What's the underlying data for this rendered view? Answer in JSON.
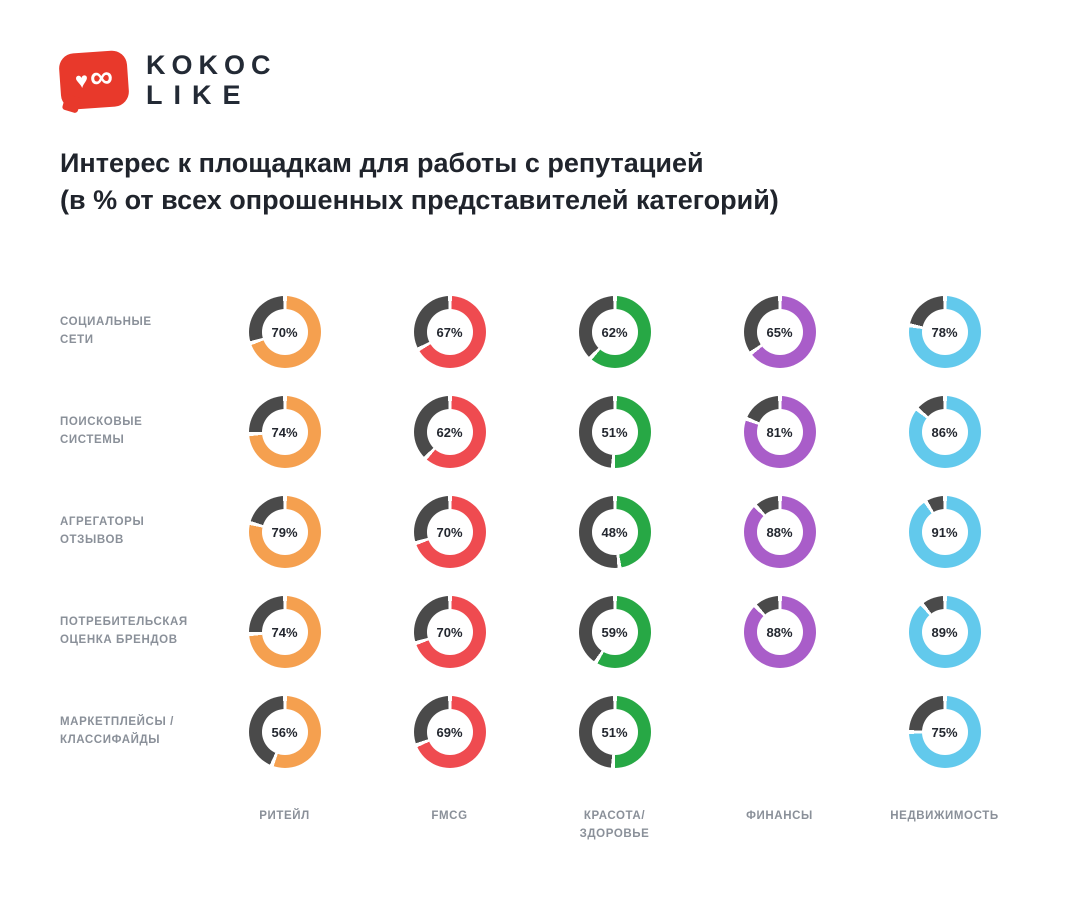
{
  "logo": {
    "brand_top": "KOKOC",
    "brand_bottom": "LIKE",
    "color": "#E8392B",
    "icon": "heart-infinity-icon"
  },
  "title": {
    "line1": "Интерес к площадкам для работы с репутацией",
    "line2": "(в % от всех опрошенных представителей категорий)"
  },
  "chart_data": {
    "type": "pie",
    "subtype": "donut-grid",
    "title": "Интерес к площадкам для работы с репутацией (в % от всех опрошенных представителей категорий)",
    "rows": [
      "СОЦИАЛЬНЫЕ\nСЕТИ",
      "ПОИСКОВЫЕ\nСИСТЕМЫ",
      "АГРЕГАТОРЫ\nОТЗЫВОВ",
      "ПОТРЕБИТЕЛЬСКАЯ\nОЦЕНКА БРЕНДОВ",
      "МАРКЕТПЛЕЙСЫ /\nКЛАССИФАЙДЫ"
    ],
    "columns": [
      {
        "label": "РИТЕЙЛ",
        "color": "#F5A04F"
      },
      {
        "label": "FMCG",
        "color": "#EF4B50"
      },
      {
        "label": "КРАСОТА/\nЗДОРОВЬЕ",
        "color": "#27A845"
      },
      {
        "label": "ФИНАНСЫ",
        "color": "#A95DC9"
      },
      {
        "label": "НЕДВИЖИМОСТЬ",
        "color": "#62C9EC"
      }
    ],
    "values": [
      [
        70,
        67,
        62,
        65,
        78
      ],
      [
        74,
        62,
        51,
        81,
        86
      ],
      [
        79,
        70,
        48,
        88,
        91
      ],
      [
        74,
        70,
        59,
        88,
        89
      ],
      [
        56,
        69,
        51,
        null,
        75
      ]
    ],
    "value_suffix": "%",
    "remainder_color": "#4A4A4A",
    "legend_position": "none",
    "grid": false
  }
}
